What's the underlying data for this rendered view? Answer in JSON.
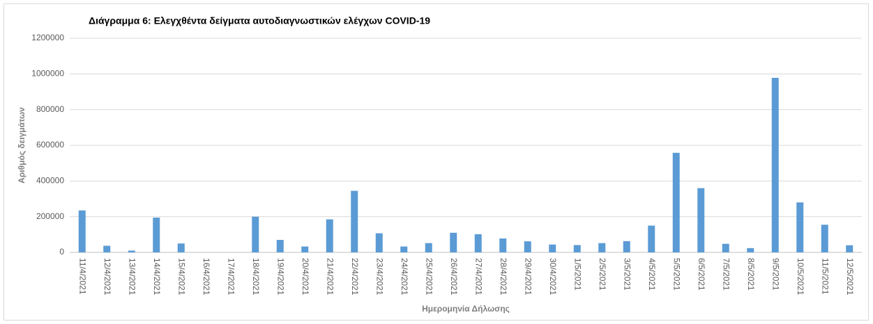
{
  "chart_data": {
    "type": "bar",
    "title": "Διάγραμμα 6: Ελεγχθέντα δείγματα αυτοδιαγνωστικών ελέγχων COVID-19",
    "x_label": "Ημερομηνία Δήλωσης",
    "y_label": "Αριθμός δειγμάτων",
    "categories": [
      "11/4/2021",
      "12/4/2021",
      "13/4/2021",
      "14/4/2021",
      "15/4/2021",
      "16/4/2021",
      "17/4/2021",
      "18/4/2021",
      "19/4/2021",
      "20/4/2021",
      "21/4/2021",
      "22/4/2021",
      "23/4/2021",
      "24/4/2021",
      "25/4/2021",
      "26/4/2021",
      "27/4/2021",
      "28/4/2021",
      "29/4/2021",
      "30/4/2021",
      "1/5/2021",
      "2/5/2021",
      "3/5/2021",
      "4/5/2021",
      "5/5/2021",
      "6/5/2021",
      "7/5/2021",
      "8/5/2021",
      "9/5/2021",
      "10/5/2021",
      "11/5/2021",
      "12/5/2021"
    ],
    "values": [
      235000,
      37000,
      10000,
      195000,
      50000,
      0,
      0,
      200000,
      70000,
      33000,
      185000,
      345000,
      107000,
      33000,
      52000,
      110000,
      102000,
      78000,
      62000,
      44000,
      41000,
      52000,
      63000,
      150000,
      558000,
      360000,
      48000,
      24000,
      978000,
      280000,
      155000,
      40000
    ],
    "color": "#5b9bd5",
    "ylim": [
      0,
      1200000
    ],
    "yticks": [
      0,
      200000,
      400000,
      600000,
      800000,
      1000000,
      1200000
    ],
    "grid": true
  }
}
